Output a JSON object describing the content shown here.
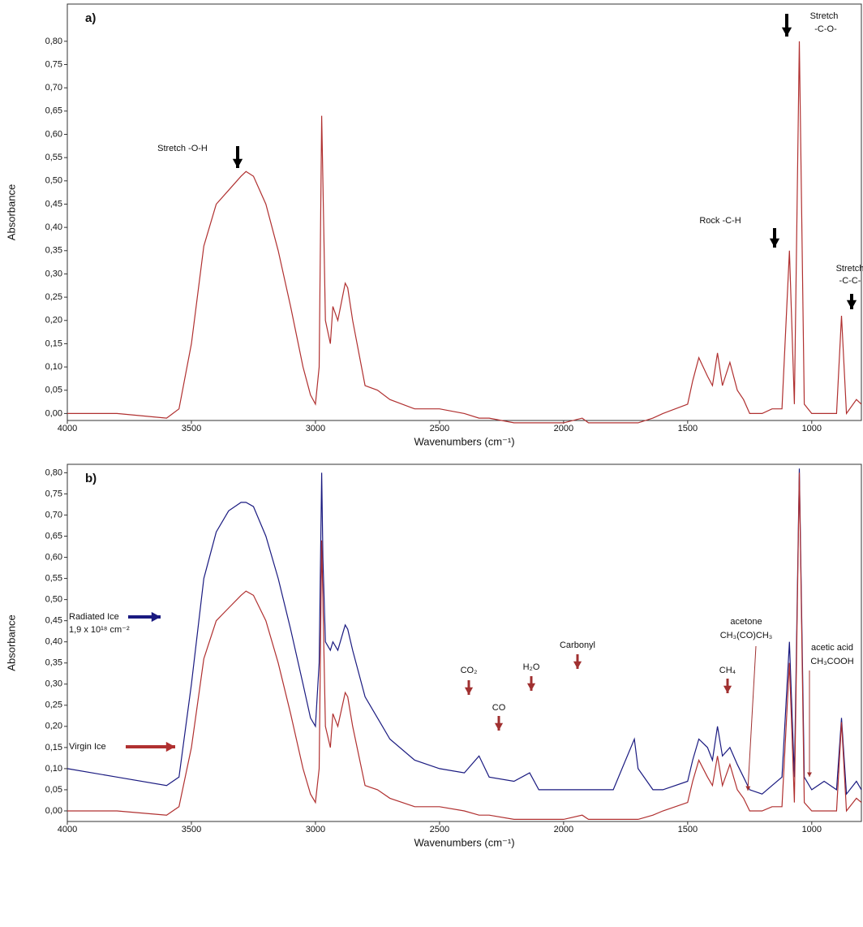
{
  "chart_data": [
    {
      "type": "line",
      "title": "a)",
      "xlabel": "Wavenumbers (cm⁻¹)",
      "ylabel": "Absorbance",
      "xlim": [
        4000,
        800
      ],
      "ylim": [
        -0.015,
        0.88
      ],
      "xticks": [
        4000,
        3500,
        3000,
        2500,
        2000,
        1500,
        1000
      ],
      "yticks": [
        {
          "value": 0,
          "label": "0,00"
        },
        {
          "value": 0.05,
          "label": "0,05"
        },
        {
          "value": 0.1,
          "label": "0,10"
        },
        {
          "value": 0.15,
          "label": "0,15"
        },
        {
          "value": 0.2,
          "label": "0,20"
        },
        {
          "value": 0.25,
          "label": "0,25"
        },
        {
          "value": 0.3,
          "label": "0,30"
        },
        {
          "value": 0.35,
          "label": "0,35"
        },
        {
          "value": 0.4,
          "label": "0,40"
        },
        {
          "value": 0.45,
          "label": "0,45"
        },
        {
          "value": 0.5,
          "label": "0,50"
        },
        {
          "value": 0.55,
          "label": "0,55"
        },
        {
          "value": 0.6,
          "label": "0,60"
        },
        {
          "value": 0.65,
          "label": "0,65"
        },
        {
          "value": 0.7,
          "label": "0,70"
        },
        {
          "value": 0.75,
          "label": "0,75"
        },
        {
          "value": 0.8,
          "label": "0,80"
        }
      ],
      "x": [
        4000,
        3800,
        3600,
        3550,
        3500,
        3450,
        3400,
        3350,
        3300,
        3280,
        3250,
        3200,
        3150,
        3100,
        3050,
        3020,
        3000,
        2985,
        2975,
        2970,
        2960,
        2940,
        2930,
        2910,
        2880,
        2870,
        2850,
        2800,
        2750,
        2700,
        2600,
        2500,
        2400,
        2341,
        2300,
        2200,
        2137,
        2100,
        2000,
        1925,
        1900,
        1800,
        1715,
        1700,
        1640,
        1600,
        1500,
        1480,
        1455,
        1420,
        1400,
        1380,
        1360,
        1330,
        1300,
        1275,
        1250,
        1200,
        1160,
        1120,
        1090,
        1070,
        1050,
        1030,
        1000,
        950,
        900,
        880,
        860,
        820,
        800
      ],
      "series": [
        {
          "color": "#b03030",
          "values": [
            0.0,
            0.0,
            -0.01,
            0.01,
            0.15,
            0.36,
            0.45,
            0.48,
            0.51,
            0.52,
            0.51,
            0.45,
            0.35,
            0.23,
            0.1,
            0.04,
            0.02,
            0.1,
            0.64,
            0.5,
            0.2,
            0.15,
            0.23,
            0.2,
            0.28,
            0.27,
            0.2,
            0.06,
            0.05,
            0.03,
            0.01,
            0.01,
            0.0,
            -0.01,
            -0.01,
            -0.02,
            -0.02,
            -0.02,
            -0.02,
            -0.01,
            -0.02,
            -0.02,
            -0.02,
            -0.02,
            -0.01,
            0.0,
            0.02,
            0.07,
            0.12,
            0.08,
            0.06,
            0.13,
            0.06,
            0.11,
            0.05,
            0.03,
            0.0,
            0.0,
            0.01,
            0.01,
            0.35,
            0.02,
            0.8,
            0.02,
            0.0,
            0.0,
            0.0,
            0.21,
            0.0,
            0.03,
            0.02
          ]
        }
      ],
      "annotations": [
        "Stretch -O-H",
        "Rock -C-H",
        "Stretch",
        "-C-O-",
        "Stretch",
        "-C-C-"
      ]
    },
    {
      "type": "line",
      "title": "b)",
      "xlabel": "Wavenumbers (cm⁻¹)",
      "ylabel": "Absorbance",
      "xlim": [
        4000,
        800
      ],
      "ylim": [
        -0.025,
        0.82
      ],
      "xticks": [
        4000,
        3500,
        3000,
        2500,
        2000,
        1500,
        1000
      ],
      "yticks": [
        {
          "value": 0,
          "label": "0,00"
        },
        {
          "value": 0.05,
          "label": "0,05"
        },
        {
          "value": 0.1,
          "label": "0,10"
        },
        {
          "value": 0.15,
          "label": "0,15"
        },
        {
          "value": 0.2,
          "label": "0,20"
        },
        {
          "value": 0.25,
          "label": "0,25"
        },
        {
          "value": 0.3,
          "label": "0,30"
        },
        {
          "value": 0.35,
          "label": "0,35"
        },
        {
          "value": 0.4,
          "label": "0,40"
        },
        {
          "value": 0.45,
          "label": "0,45"
        },
        {
          "value": 0.5,
          "label": "0,50"
        },
        {
          "value": 0.55,
          "label": "0,55"
        },
        {
          "value": 0.6,
          "label": "0,60"
        },
        {
          "value": 0.65,
          "label": "0,65"
        },
        {
          "value": 0.7,
          "label": "0,70"
        },
        {
          "value": 0.75,
          "label": "0,75"
        },
        {
          "value": 0.8,
          "label": "0,80"
        }
      ],
      "x": [
        4000,
        3800,
        3600,
        3550,
        3500,
        3450,
        3400,
        3350,
        3300,
        3280,
        3250,
        3200,
        3150,
        3100,
        3050,
        3020,
        3000,
        2985,
        2975,
        2970,
        2960,
        2940,
        2930,
        2910,
        2880,
        2870,
        2850,
        2800,
        2750,
        2700,
        2600,
        2500,
        2400,
        2341,
        2300,
        2200,
        2137,
        2100,
        2000,
        1925,
        1900,
        1800,
        1715,
        1700,
        1640,
        1600,
        1500,
        1480,
        1455,
        1420,
        1400,
        1380,
        1360,
        1330,
        1300,
        1275,
        1250,
        1200,
        1160,
        1120,
        1090,
        1070,
        1050,
        1030,
        1000,
        950,
        900,
        880,
        860,
        820,
        800
      ],
      "series": [
        {
          "name": "Radiated Ice",
          "color": "#1a1a80",
          "values": [
            0.1,
            0.08,
            0.06,
            0.08,
            0.3,
            0.55,
            0.66,
            0.71,
            0.73,
            0.73,
            0.72,
            0.65,
            0.55,
            0.43,
            0.3,
            0.22,
            0.2,
            0.35,
            0.8,
            0.6,
            0.4,
            0.38,
            0.4,
            0.38,
            0.44,
            0.43,
            0.38,
            0.27,
            0.22,
            0.17,
            0.12,
            0.1,
            0.09,
            0.13,
            0.08,
            0.07,
            0.09,
            0.05,
            0.05,
            0.05,
            0.05,
            0.05,
            0.17,
            0.1,
            0.05,
            0.05,
            0.07,
            0.12,
            0.17,
            0.15,
            0.12,
            0.2,
            0.13,
            0.15,
            0.11,
            0.08,
            0.05,
            0.04,
            0.06,
            0.08,
            0.4,
            0.08,
            0.81,
            0.08,
            0.05,
            0.07,
            0.05,
            0.22,
            0.04,
            0.07,
            0.05
          ]
        },
        {
          "name": "Virgin Ice",
          "color": "#b03030",
          "values": [
            0.0,
            0.0,
            -0.01,
            0.01,
            0.15,
            0.36,
            0.45,
            0.48,
            0.51,
            0.52,
            0.51,
            0.45,
            0.35,
            0.23,
            0.1,
            0.04,
            0.02,
            0.1,
            0.64,
            0.5,
            0.2,
            0.15,
            0.23,
            0.2,
            0.28,
            0.27,
            0.2,
            0.06,
            0.05,
            0.03,
            0.01,
            0.01,
            0.0,
            -0.01,
            -0.01,
            -0.02,
            -0.02,
            -0.02,
            -0.02,
            -0.01,
            -0.02,
            -0.02,
            -0.02,
            -0.02,
            -0.01,
            0.0,
            0.02,
            0.07,
            0.12,
            0.08,
            0.06,
            0.13,
            0.06,
            0.11,
            0.05,
            0.03,
            0.0,
            0.0,
            0.01,
            0.01,
            0.35,
            0.02,
            0.8,
            0.02,
            0.0,
            0.0,
            0.0,
            0.21,
            0.0,
            0.03,
            0.02
          ]
        }
      ],
      "annotations": [
        "1,9 x 10¹⁸ cm⁻²",
        "CO₂",
        "CO",
        "Carbonyl",
        "H₂O",
        "CH₄",
        "acetone",
        "CH₃(CO)CH₃",
        "acetic acid",
        "CH₃COOH"
      ]
    }
  ]
}
